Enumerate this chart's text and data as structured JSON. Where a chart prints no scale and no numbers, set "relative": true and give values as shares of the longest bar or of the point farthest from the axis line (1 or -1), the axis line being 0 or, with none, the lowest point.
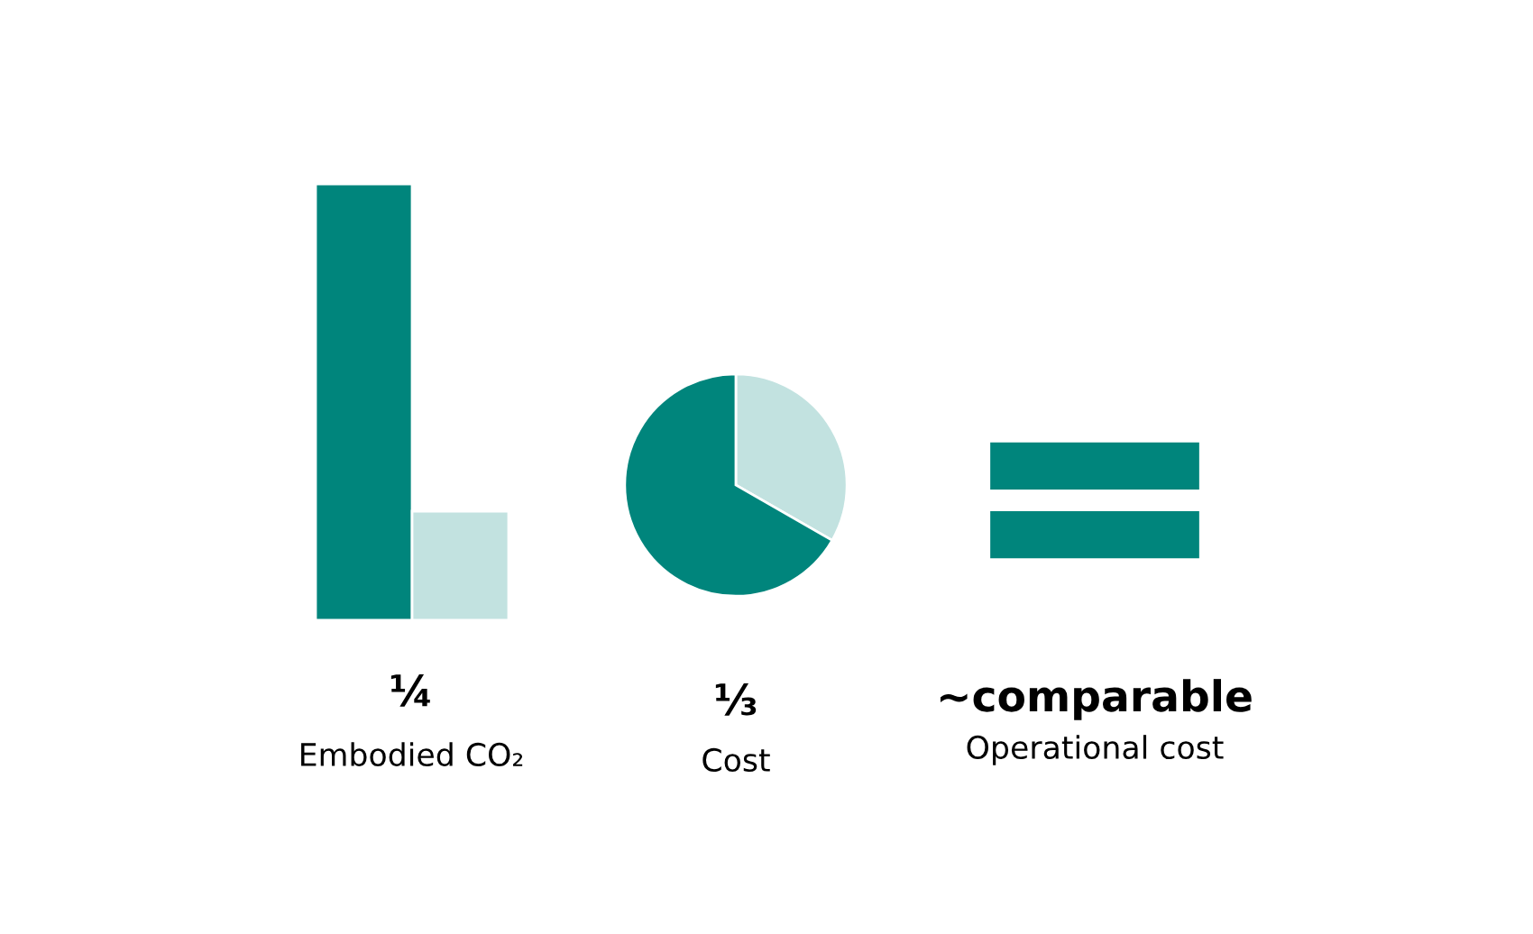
{
  "chart_data": [
    {
      "type": "bar",
      "title": "¼",
      "subtitle": "Embodied CO₂",
      "relative": true,
      "categories": [
        null,
        null
      ],
      "values": [
        1,
        0.25
      ],
      "colors": [
        "#00857c",
        "#c2e2e0"
      ]
    },
    {
      "type": "pie",
      "title": "⅓",
      "subtitle": "Cost",
      "categories": [
        null,
        null
      ],
      "values": [
        33.3,
        66.7
      ],
      "colors": [
        "#c2e2e0",
        "#00857c"
      ]
    },
    {
      "type": "other",
      "title": "~comparable",
      "subtitle": "Operational cost"
    }
  ]
}
